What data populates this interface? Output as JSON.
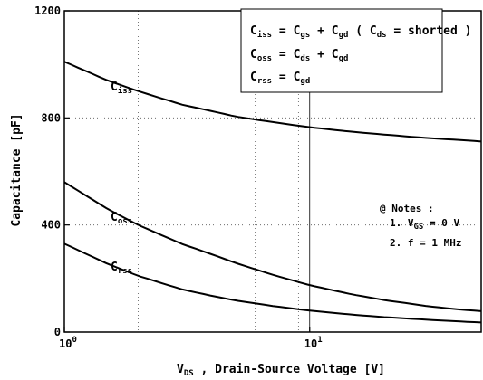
{
  "chart_data": {
    "type": "line",
    "x_scale": "log",
    "xlim": [
      1,
      50
    ],
    "ylim": [
      0,
      1200
    ],
    "xlabel": {
      "main": "V",
      "sub": "DS",
      "rest": ", Drain-Source Voltage [V]"
    },
    "ylabel": "Capacitance  [pF]",
    "x_ticks": [
      {
        "value": 1,
        "base": "10",
        "exp": "0"
      },
      {
        "value": 10,
        "base": "10",
        "exp": "1"
      }
    ],
    "y_ticks": [
      {
        "value": 0,
        "label": "0"
      },
      {
        "value": 400,
        "label": "400"
      },
      {
        "value": 800,
        "label": "800"
      },
      {
        "value": 1200,
        "label": "1200"
      }
    ],
    "x_minor_gridlines": [
      2,
      6,
      9
    ],
    "vertical_line": 10,
    "grid": true,
    "series": [
      {
        "name": "C",
        "name_sub": "iss",
        "x": [
          1,
          1.5,
          2,
          3,
          4,
          5,
          7,
          10,
          15,
          20,
          30,
          40,
          50
        ],
        "values": [
          1010,
          940,
          900,
          850,
          825,
          805,
          785,
          765,
          748,
          738,
          725,
          718,
          712
        ]
      },
      {
        "name": "C",
        "name_sub": "oss",
        "x": [
          1,
          1.5,
          2,
          3,
          4,
          5,
          7,
          10,
          15,
          20,
          30,
          40,
          50
        ],
        "values": [
          560,
          460,
          400,
          330,
          290,
          258,
          215,
          175,
          140,
          120,
          97,
          85,
          78
        ]
      },
      {
        "name": "C",
        "name_sub": "rss",
        "x": [
          1,
          1.5,
          2,
          3,
          4,
          5,
          7,
          10,
          15,
          20,
          30,
          40,
          50
        ],
        "values": [
          330,
          255,
          210,
          160,
          135,
          118,
          98,
          80,
          65,
          56,
          46,
          40,
          36
        ]
      }
    ],
    "legend_box": [
      [
        "C",
        "iss",
        " = C",
        "gs",
        " + C",
        "gd",
        " ( C",
        "ds",
        " = shorted )"
      ],
      [
        "C",
        "oss",
        " = C",
        "ds",
        " + C",
        "gd"
      ],
      [
        "C",
        "rss",
        " = C",
        "gd"
      ]
    ],
    "notes": {
      "title": "@ Notes :",
      "line1": [
        "1. V",
        "GS",
        " = 0 V"
      ],
      "line2": "2. f = 1 MHz"
    },
    "title": ""
  }
}
